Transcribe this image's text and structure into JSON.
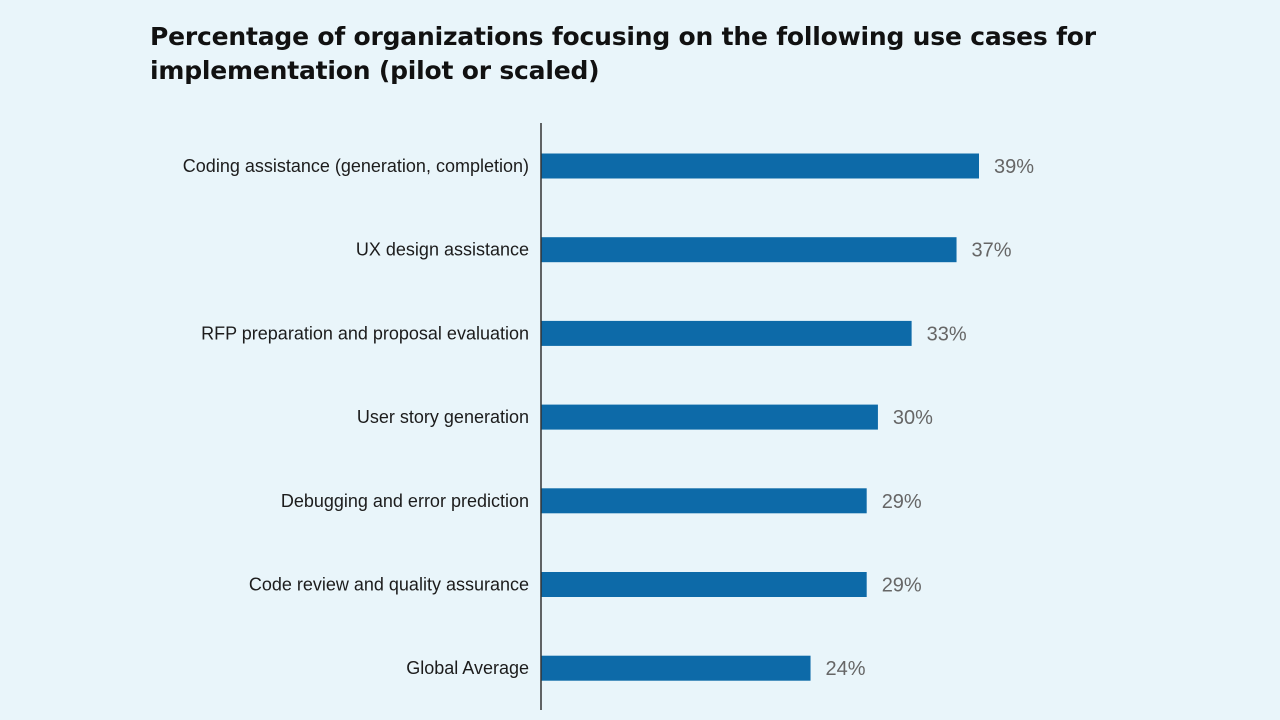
{
  "colors": {
    "background": "#e9f5fa",
    "bar": "#0d6aa8",
    "axis": "#333333",
    "value_text": "#666666",
    "label_text": "#1c1c1c"
  },
  "chart_data": {
    "type": "bar",
    "orientation": "horizontal",
    "title": "Percentage of organizations focusing on the following use cases for implementation (pilot or scaled)",
    "categories": [
      "Coding assistance (generation, completion)",
      "UX design assistance",
      "RFP preparation and proposal evaluation",
      "User story generation",
      "Debugging and error prediction",
      "Code review and quality assurance",
      "Global Average"
    ],
    "values": [
      39,
      37,
      33,
      30,
      29,
      29,
      24
    ],
    "value_labels": [
      "39%",
      "37%",
      "33%",
      "30%",
      "29%",
      "29%",
      "24%"
    ],
    "unit": "%",
    "xlim": [
      0,
      39
    ],
    "grid": false,
    "legend": "none"
  }
}
